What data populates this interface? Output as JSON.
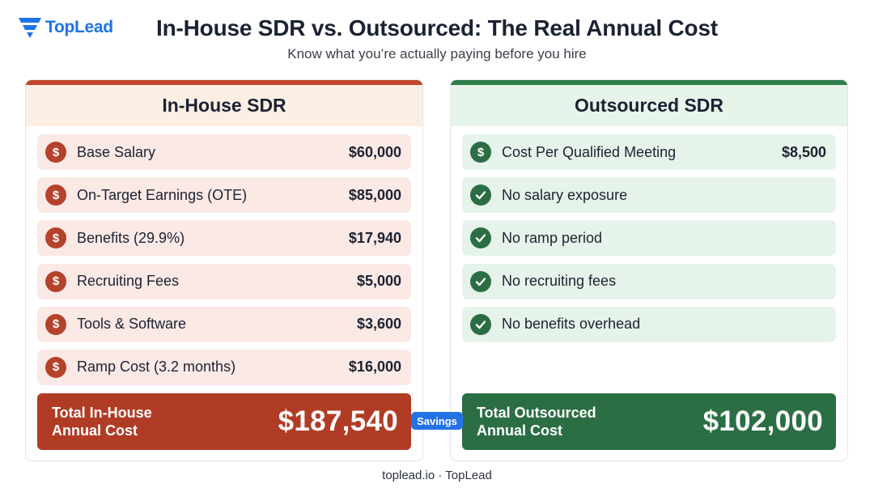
{
  "brand": {
    "name": "TopLead",
    "accent": "#1e73e8"
  },
  "header": {
    "title": "In-House SDR vs. Outsourced: The Real Annual Cost",
    "subtitle": "Know what you’re actually paying before you hire"
  },
  "in_house": {
    "heading": "In-House SDR",
    "accent": "#c0462e",
    "items": [
      {
        "icon": "dollar-icon",
        "label": "Base Salary",
        "value": "$60,000"
      },
      {
        "icon": "dollar-icon",
        "label": "On-Target Earnings (OTE)",
        "value": "$85,000"
      },
      {
        "icon": "dollar-icon",
        "label": "Benefits (29.9%)",
        "value": "$17,940"
      },
      {
        "icon": "dollar-icon",
        "label": "Recruiting Fees",
        "value": "$5,000"
      },
      {
        "icon": "dollar-icon",
        "label": "Tools & Software",
        "value": "$3,600"
      },
      {
        "icon": "dollar-icon",
        "label": "Ramp Cost (3.2 months)",
        "value": "$16,000"
      }
    ],
    "total_label": "Total In-House\nAnnual Cost",
    "total_value": "$187,540"
  },
  "outsourced": {
    "heading": "Outsourced SDR",
    "accent": "#2e7d4a",
    "items": [
      {
        "icon": "dollar-icon",
        "label": "Cost Per Qualified Meeting",
        "value": "$8,500"
      },
      {
        "icon": "check-icon",
        "label": "No salary exposure",
        "value": ""
      },
      {
        "icon": "check-icon",
        "label": "No ramp period",
        "value": ""
      },
      {
        "icon": "check-icon",
        "label": "No recruiting fees",
        "value": ""
      },
      {
        "icon": "check-icon",
        "label": "No benefits overhead",
        "value": ""
      }
    ],
    "total_label": "Total Outsourced\nAnnual Cost",
    "total_value": "$102,000"
  },
  "savings_badge": "Savings",
  "footer": "toplead.io · TopLead"
}
